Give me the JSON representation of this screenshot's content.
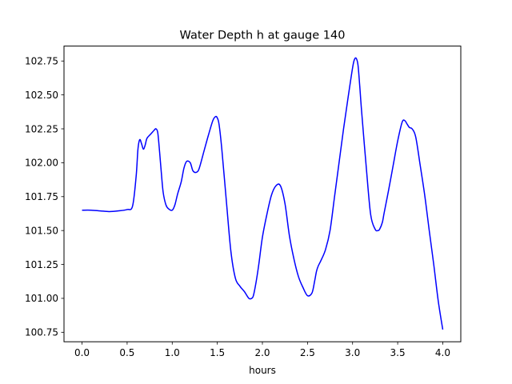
{
  "chart_data": {
    "type": "line",
    "title": "Water Depth h at gauge 140",
    "xlabel": "hours",
    "ylabel": "",
    "xlim": [
      -0.2,
      4.2
    ],
    "ylim": [
      100.68,
      102.86
    ],
    "xticks": [
      0.0,
      0.5,
      1.0,
      1.5,
      2.0,
      2.5,
      3.0,
      3.5,
      4.0
    ],
    "xtick_labels": [
      "0.0",
      "0.5",
      "1.0",
      "1.5",
      "2.0",
      "2.5",
      "3.0",
      "3.5",
      "4.0"
    ],
    "yticks": [
      100.75,
      101.0,
      101.25,
      101.5,
      101.75,
      102.0,
      102.25,
      102.5,
      102.75
    ],
    "ytick_labels": [
      "100.75",
      "101.00",
      "101.25",
      "101.50",
      "101.75",
      "102.00",
      "102.25",
      "102.50",
      "102.75"
    ],
    "grid": false,
    "series": [
      {
        "color": "#0000ff",
        "x": [
          0.0,
          0.1,
          0.2,
          0.3,
          0.4,
          0.5,
          0.56,
          0.6,
          0.62,
          0.64,
          0.66,
          0.68,
          0.7,
          0.72,
          0.76,
          0.8,
          0.82,
          0.84,
          0.86,
          0.88,
          0.9,
          0.93,
          0.96,
          1.0,
          1.03,
          1.06,
          1.1,
          1.13,
          1.16,
          1.2,
          1.23,
          1.27,
          1.3,
          1.35,
          1.4,
          1.45,
          1.48,
          1.5,
          1.52,
          1.55,
          1.6,
          1.65,
          1.7,
          1.75,
          1.8,
          1.85,
          1.88,
          1.9,
          1.93,
          1.96,
          2.0,
          2.05,
          2.1,
          2.15,
          2.2,
          2.25,
          2.3,
          2.35,
          2.4,
          2.45,
          2.5,
          2.55,
          2.58,
          2.6,
          2.62,
          2.65,
          2.7,
          2.75,
          2.8,
          2.85,
          2.9,
          2.95,
          3.0,
          3.02,
          3.04,
          3.06,
          3.08,
          3.1,
          3.15,
          3.2,
          3.25,
          3.28,
          3.3,
          3.33,
          3.35,
          3.4,
          3.45,
          3.5,
          3.55,
          3.58,
          3.6,
          3.63,
          3.66,
          3.7,
          3.75,
          3.8,
          3.85,
          3.9,
          3.95,
          4.0
        ],
        "y": [
          101.65,
          101.65,
          101.645,
          101.64,
          101.645,
          101.655,
          101.68,
          101.9,
          102.1,
          102.17,
          102.14,
          102.1,
          102.13,
          102.18,
          102.21,
          102.24,
          102.25,
          102.22,
          102.08,
          101.92,
          101.78,
          101.69,
          101.66,
          101.65,
          101.69,
          101.77,
          101.86,
          101.96,
          102.01,
          102.0,
          101.94,
          101.93,
          101.96,
          102.08,
          102.2,
          102.31,
          102.34,
          102.33,
          102.28,
          102.1,
          101.72,
          101.35,
          101.15,
          101.09,
          101.05,
          101.0,
          101.0,
          101.02,
          101.12,
          101.25,
          101.45,
          101.62,
          101.76,
          101.83,
          101.83,
          101.7,
          101.46,
          101.29,
          101.16,
          101.08,
          101.02,
          101.04,
          101.13,
          101.2,
          101.24,
          101.28,
          101.36,
          101.5,
          101.75,
          102.0,
          102.25,
          102.48,
          102.7,
          102.76,
          102.77,
          102.72,
          102.56,
          102.38,
          101.98,
          101.62,
          101.51,
          101.5,
          101.51,
          101.56,
          101.63,
          101.8,
          101.98,
          102.16,
          102.3,
          102.31,
          102.29,
          102.26,
          102.25,
          102.19,
          101.98,
          101.76,
          101.5,
          101.25,
          100.98,
          100.77
        ]
      }
    ]
  }
}
